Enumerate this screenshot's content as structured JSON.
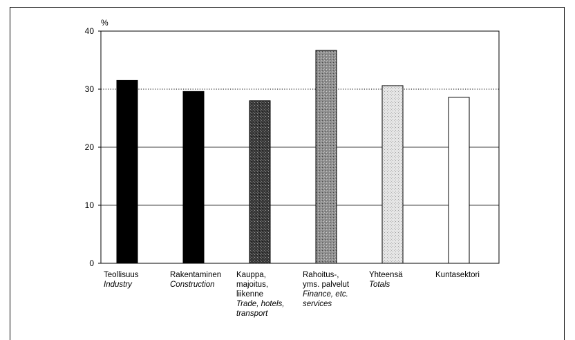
{
  "chart_data": {
    "type": "bar",
    "ylabel": "%",
    "ylim": [
      0,
      40
    ],
    "yticks": [
      0,
      10,
      20,
      30,
      40
    ],
    "grid": true,
    "reference_line": 30,
    "categories": [
      {
        "fi": [
          "Teollisuus"
        ],
        "en": [
          "Industry"
        ]
      },
      {
        "fi": [
          "Rakentaminen"
        ],
        "en": [
          "Construction"
        ]
      },
      {
        "fi": [
          "Kauppa,",
          "majoitus,",
          "liikenne"
        ],
        "en": [
          "Trade, hotels,",
          "transport"
        ]
      },
      {
        "fi": [
          "Rahoitus-,",
          "yms. palvelut"
        ],
        "en": [
          "Finance, etc.",
          "services"
        ]
      },
      {
        "fi": [
          "Yhteensä"
        ],
        "en": [
          "Totals"
        ]
      },
      {
        "fi": [
          "Kuntasektori"
        ],
        "en": []
      }
    ],
    "values": [
      31.5,
      29.6,
      28.0,
      36.7,
      30.6,
      28.6
    ],
    "fills": [
      "#000000",
      "#000000",
      "pattern-dark",
      "pattern-mid",
      "pattern-light",
      "#ffffff"
    ]
  }
}
